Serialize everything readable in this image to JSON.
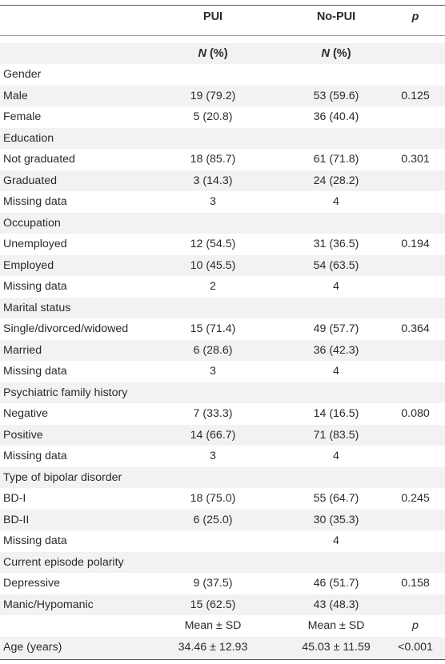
{
  "header": {
    "col_pui": "PUI",
    "col_nopui": "No-PUI",
    "col_p": "p",
    "unit_pui_n": "N",
    "unit_pui_pct": " (%)",
    "unit_nopui_n": "N",
    "unit_nopui_pct": " (%)"
  },
  "rows": [
    {
      "label": "Gender",
      "pui": "",
      "nopui": "",
      "p": ""
    },
    {
      "label": "Male",
      "pui": "19 (79.2)",
      "nopui": "53 (59.6)",
      "p": "0.125"
    },
    {
      "label": "Female",
      "pui": "5 (20.8)",
      "nopui": "36 (40.4)",
      "p": ""
    },
    {
      "label": "Education",
      "pui": "",
      "nopui": "",
      "p": ""
    },
    {
      "label": "Not graduated",
      "pui": "18 (85.7)",
      "nopui": "61 (71.8)",
      "p": "0.301"
    },
    {
      "label": "Graduated",
      "pui": "3 (14.3)",
      "nopui": "24 (28.2)",
      "p": ""
    },
    {
      "label": "Missing data",
      "pui": "3",
      "nopui": "4",
      "p": ""
    },
    {
      "label": "Occupation",
      "pui": "",
      "nopui": "",
      "p": ""
    },
    {
      "label": "Unemployed",
      "pui": "12 (54.5)",
      "nopui": "31 (36.5)",
      "p": "0.194"
    },
    {
      "label": "Employed",
      "pui": "10 (45.5)",
      "nopui": "54 (63.5)",
      "p": ""
    },
    {
      "label": "Missing data",
      "pui": "2",
      "nopui": "4",
      "p": ""
    },
    {
      "label": "Marital status",
      "pui": "",
      "nopui": "",
      "p": ""
    },
    {
      "label": "Single/divorced/widowed",
      "pui": "15 (71.4)",
      "nopui": "49 (57.7)",
      "p": "0.364"
    },
    {
      "label": "Married",
      "pui": "6 (28.6)",
      "nopui": "36 (42.3)",
      "p": ""
    },
    {
      "label": "Missing data",
      "pui": "3",
      "nopui": "4",
      "p": ""
    },
    {
      "label": "Psychiatric family history",
      "pui": "",
      "nopui": "",
      "p": ""
    },
    {
      "label": "Negative",
      "pui": "7 (33.3)",
      "nopui": "14 (16.5)",
      "p": "0.080"
    },
    {
      "label": "Positive",
      "pui": "14 (66.7)",
      "nopui": "71 (83.5)",
      "p": ""
    },
    {
      "label": "Missing data",
      "pui": "3",
      "nopui": "4",
      "p": ""
    },
    {
      "label": "Type of bipolar disorder",
      "pui": "",
      "nopui": "",
      "p": ""
    },
    {
      "label": "BD-I",
      "pui": "18 (75.0)",
      "nopui": "55 (64.7)",
      "p": "0.245"
    },
    {
      "label": "BD-II",
      "pui": "6 (25.0)",
      "nopui": "30 (35.3)",
      "p": ""
    },
    {
      "label": "Missing data",
      "pui": "",
      "nopui": "4",
      "p": ""
    },
    {
      "label": "Current episode polarity",
      "pui": "",
      "nopui": "",
      "p": ""
    },
    {
      "label": "Depressive",
      "pui": "9 (37.5)",
      "nopui": "46 (51.7)",
      "p": "0.158"
    },
    {
      "label": "Manic/Hypomanic",
      "pui": "15 (62.5)",
      "nopui": "43 (48.3)",
      "p": ""
    },
    {
      "label": "",
      "pui": "Mean ± SD",
      "nopui": "Mean ± SD",
      "p": "p",
      "p_italic": true
    },
    {
      "label": "Age (years)",
      "pui": "34.46 ± 12.93",
      "nopui": "45.03 ± 11.59",
      "p": "<0.001"
    }
  ]
}
